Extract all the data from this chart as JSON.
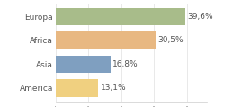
{
  "categories": [
    "Europa",
    "Africa",
    "Asia",
    "America"
  ],
  "values": [
    39.6,
    30.5,
    16.8,
    13.1
  ],
  "labels": [
    "39,6%",
    "30,5%",
    "16,8%",
    "13,1%"
  ],
  "bar_colors": [
    "#a8bc8a",
    "#e8b882",
    "#7f9fc0",
    "#f0d080"
  ],
  "xlim": [
    0,
    46
  ],
  "background_color": "#ffffff",
  "label_fontsize": 6.5,
  "tick_fontsize": 6.5
}
